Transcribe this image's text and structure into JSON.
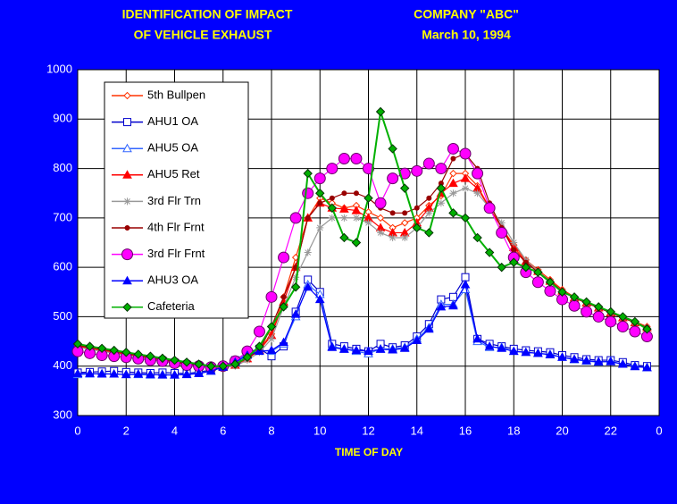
{
  "chart_data": {
    "type": "line",
    "title": [
      "IDENTIFICATION OF IMPACT",
      "OF VEHICLE EXHAUST"
    ],
    "subtitle": [
      "COMPANY \"ABC\"",
      "March 10, 1994"
    ],
    "x_label": "TIME OF DAY",
    "x": [
      0,
      0.5,
      1,
      1.5,
      2,
      2.5,
      3,
      3.5,
      4,
      4.5,
      5,
      5.5,
      6,
      6.5,
      7,
      7.5,
      8,
      8.5,
      9,
      9.5,
      10,
      10.5,
      11,
      11.5,
      12,
      12.5,
      13,
      13.5,
      14,
      14.5,
      15,
      15.5,
      16,
      16.5,
      17,
      17.5,
      18,
      18.5,
      19,
      19.5,
      20,
      20.5,
      21,
      21.5,
      22,
      22.5,
      23,
      23.5
    ],
    "xlim": [
      0,
      24
    ],
    "xticks": [
      0,
      2,
      4,
      6,
      8,
      10,
      12,
      14,
      16,
      18,
      20,
      22,
      {
        "value": 24,
        "label": "0"
      }
    ],
    "ylim": [
      300,
      1000
    ],
    "yticks": [
      300,
      400,
      500,
      600,
      700,
      800,
      900,
      1000
    ],
    "grid": true,
    "legend": "upper left",
    "series": [
      {
        "name": "5th  Bullpen",
        "color": "#ff3300",
        "marker": "diamond",
        "marker_filled": false,
        "values": [
          442,
          438,
          434,
          430,
          426,
          422,
          418,
          414,
          410,
          406,
          402,
          400,
          400,
          405,
          418,
          435,
          465,
          540,
          620,
          700,
          740,
          730,
          720,
          725,
          712,
          700,
          680,
          690,
          700,
          725,
          745,
          790,
          790,
          765,
          720,
          680,
          645,
          615,
          595,
          575,
          555,
          540,
          530,
          520,
          510,
          500,
          490,
          480
        ]
      },
      {
        "name": "AHU1 OA",
        "color": "#0000cc",
        "marker": "square",
        "marker_filled": false,
        "values": [
          387,
          388,
          389,
          390,
          388,
          387,
          386,
          387,
          386,
          385,
          388,
          392,
          400,
          412,
          428,
          435,
          420,
          440,
          510,
          575,
          550,
          445,
          440,
          435,
          430,
          445,
          438,
          442,
          460,
          485,
          535,
          540,
          580,
          455,
          445,
          440,
          435,
          432,
          430,
          428,
          422,
          418,
          414,
          412,
          412,
          408,
          402,
          400
        ]
      },
      {
        "name": "AHU5 OA",
        "color": "#3366ff",
        "marker": "triangle",
        "marker_filled": false,
        "values": [
          383,
          384,
          385,
          384,
          383,
          383,
          382,
          383,
          382,
          384,
          386,
          390,
          398,
          410,
          425,
          432,
          430,
          445,
          500,
          565,
          545,
          440,
          435,
          430,
          425,
          435,
          435,
          438,
          455,
          478,
          525,
          525,
          555,
          450,
          438,
          438,
          430,
          428,
          426,
          424,
          418,
          413,
          410,
          408,
          410,
          404,
          400,
          397
        ]
      },
      {
        "name": "AHU5 Ret",
        "color": "#ff0000",
        "marker": "triangle",
        "marker_filled": true,
        "values": [
          440,
          436,
          432,
          428,
          424,
          420,
          416,
          412,
          408,
          404,
          400,
          398,
          398,
          402,
          415,
          432,
          462,
          530,
          600,
          700,
          730,
          720,
          718,
          715,
          700,
          680,
          670,
          670,
          690,
          720,
          750,
          770,
          780,
          760,
          720,
          680,
          640,
          612,
          592,
          572,
          552,
          538,
          528,
          518,
          508,
          498,
          488,
          478
        ]
      },
      {
        "name": "3rd Flr Trn",
        "color": "#999999",
        "marker": "asterisk",
        "marker_filled": false,
        "values": [
          438,
          434,
          430,
          426,
          422,
          418,
          414,
          410,
          406,
          402,
          399,
          397,
          397,
          400,
          412,
          428,
          455,
          520,
          580,
          630,
          680,
          700,
          700,
          700,
          690,
          670,
          660,
          660,
          680,
          710,
          730,
          750,
          760,
          750,
          720,
          690,
          650,
          615,
          592,
          572,
          552,
          538,
          528,
          518,
          508,
          498,
          488,
          478
        ]
      },
      {
        "name": "4th Flr Frnt",
        "color": "#990000",
        "marker": "circle",
        "marker_filled": true,
        "values": [
          442,
          438,
          434,
          430,
          426,
          422,
          418,
          414,
          410,
          406,
          402,
          400,
          400,
          404,
          416,
          432,
          480,
          540,
          600,
          700,
          730,
          740,
          750,
          750,
          740,
          720,
          710,
          710,
          720,
          740,
          770,
          820,
          830,
          800,
          730,
          680,
          635,
          610,
          590,
          572,
          552,
          538,
          528,
          518,
          508,
          498,
          488,
          478
        ]
      },
      {
        "name": "3rd Flr Frnt",
        "color": "#ff00ff",
        "marker": "bigcircle",
        "marker_filled": true,
        "values": [
          430,
          426,
          422,
          420,
          418,
          415,
          412,
          410,
          406,
          402,
          400,
          398,
          400,
          410,
          430,
          470,
          540,
          620,
          700,
          750,
          780,
          800,
          820,
          820,
          800,
          730,
          780,
          790,
          795,
          810,
          800,
          840,
          830,
          790,
          720,
          670,
          620,
          590,
          570,
          552,
          535,
          522,
          510,
          500,
          490,
          480,
          470,
          460
        ]
      },
      {
        "name": "AHU3 OA",
        "color": "#0000ff",
        "marker": "triangle",
        "marker_filled": true,
        "values": [
          385,
          385,
          384,
          384,
          383,
          384,
          383,
          382,
          382,
          383,
          385,
          390,
          398,
          408,
          422,
          430,
          432,
          448,
          505,
          560,
          535,
          438,
          434,
          432,
          430,
          434,
          433,
          436,
          452,
          475,
          520,
          522,
          565,
          455,
          440,
          436,
          430,
          428,
          426,
          423,
          418,
          414,
          411,
          409,
          409,
          404,
          399,
          397
        ]
      },
      {
        "name": "Cafeteria",
        "color": "#00b000",
        "marker": "diamond",
        "marker_filled": true,
        "values": [
          445,
          440,
          436,
          432,
          428,
          424,
          420,
          416,
          412,
          408,
          404,
          400,
          400,
          404,
          418,
          440,
          480,
          520,
          560,
          790,
          750,
          720,
          660,
          650,
          740,
          915,
          840,
          760,
          680,
          670,
          760,
          710,
          700,
          660,
          630,
          600,
          610,
          600,
          590,
          570,
          550,
          540,
          530,
          520,
          510,
          500,
          490,
          475
        ]
      }
    ]
  }
}
